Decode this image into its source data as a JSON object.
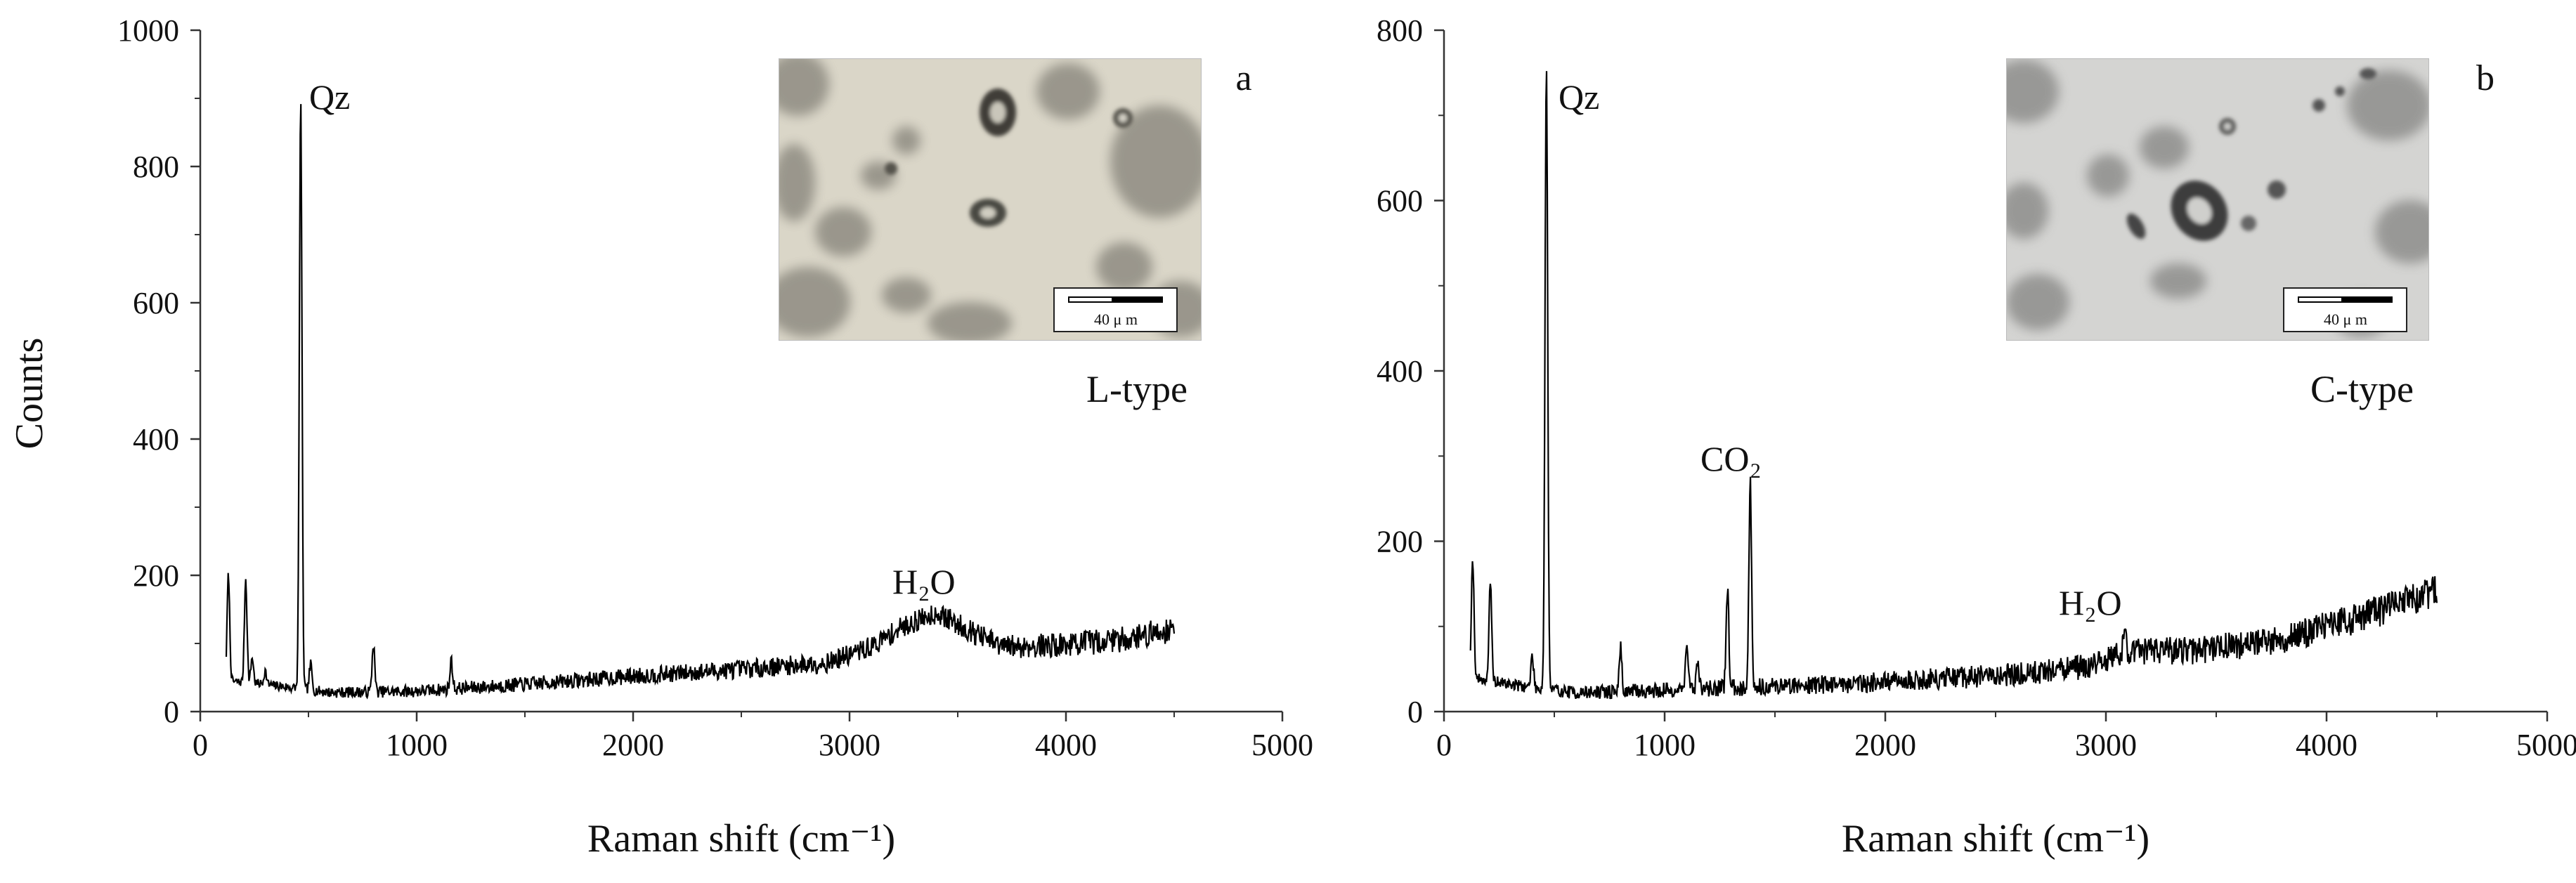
{
  "chart_data": [
    {
      "panel": "a",
      "type": "line",
      "xlabel": "Raman shift (cm⁻¹)",
      "ylabel": "Counts",
      "xlim": [
        0,
        5000
      ],
      "ylim": [
        0,
        1000
      ],
      "x_ticks": [
        0,
        1000,
        2000,
        3000,
        4000,
        5000
      ],
      "y_ticks": [
        0,
        200,
        400,
        600,
        800,
        1000
      ],
      "grid": false,
      "inset_label": "L-type",
      "scale_bar": "40 μ m",
      "annotations": [
        {
          "text": "Qz",
          "x": 464,
          "y": 900
        },
        {
          "text": "H₂O",
          "x": 3400,
          "y": 155
        }
      ],
      "spectrum": {
        "x_start": 120,
        "x_end": 4500,
        "baseline": [
          [
            120,
            45
          ],
          [
            300,
            40
          ],
          [
            600,
            28
          ],
          [
            1000,
            30
          ],
          [
            1500,
            40
          ],
          [
            2000,
            52
          ],
          [
            2500,
            62
          ],
          [
            2900,
            72
          ],
          [
            3100,
            95
          ],
          [
            3250,
            125
          ],
          [
            3400,
            145
          ],
          [
            3550,
            120
          ],
          [
            3700,
            95
          ],
          [
            4000,
            98
          ],
          [
            4300,
            108
          ],
          [
            4500,
            122
          ]
        ],
        "peaks": [
          [
            130,
            200
          ],
          [
            210,
            195
          ],
          [
            240,
            80
          ],
          [
            300,
            60
          ],
          [
            464,
            900
          ],
          [
            510,
            70
          ],
          [
            800,
            100
          ],
          [
            1160,
            75
          ]
        ],
        "noise": 10
      }
    },
    {
      "panel": "b",
      "type": "line",
      "xlabel": "Raman shift (cm⁻¹)",
      "ylabel": "",
      "xlim": [
        0,
        5000
      ],
      "ylim": [
        0,
        800
      ],
      "x_ticks": [
        0,
        1000,
        2000,
        3000,
        4000,
        5000
      ],
      "y_ticks": [
        0,
        200,
        400,
        600,
        800
      ],
      "grid": false,
      "inset_label": "C-type",
      "scale_bar": "40 μ m",
      "annotations": [
        {
          "text": "Qz",
          "x": 464,
          "y": 760
        },
        {
          "text": "CO₂",
          "x": 1388,
          "y": 270
        },
        {
          "text": "H₂O",
          "x": 3100,
          "y": 95
        }
      ],
      "spectrum": {
        "x_start": 120,
        "x_end": 4500,
        "baseline": [
          [
            120,
            40
          ],
          [
            300,
            32
          ],
          [
            600,
            22
          ],
          [
            1000,
            25
          ],
          [
            1500,
            30
          ],
          [
            2000,
            35
          ],
          [
            2500,
            42
          ],
          [
            2900,
            52
          ],
          [
            3100,
            70
          ],
          [
            3400,
            72
          ],
          [
            3800,
            85
          ],
          [
            4200,
            115
          ],
          [
            4500,
            140
          ]
        ],
        "peaks": [
          [
            130,
            180
          ],
          [
            210,
            150
          ],
          [
            400,
            65
          ],
          [
            464,
            760
          ],
          [
            800,
            75
          ],
          [
            1100,
            85
          ],
          [
            1150,
            60
          ],
          [
            1285,
            145
          ],
          [
            1388,
            270
          ],
          [
            3085,
            95
          ],
          [
            3160,
            80
          ]
        ],
        "noise": 10
      }
    }
  ]
}
